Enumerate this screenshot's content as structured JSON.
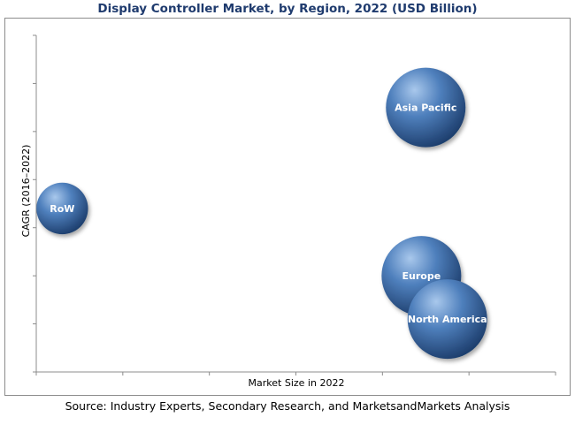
{
  "chart_data": {
    "type": "bubble",
    "title": "Display Controller Market, by Region, 2022 (USD Billion)",
    "xlabel": "Market Size in 2022",
    "ylabel": "CAGR (2016–2022)",
    "xlim": [
      0,
      6
    ],
    "ylim": [
      0,
      7
    ],
    "grid": false,
    "series": [
      {
        "name": "Asia Pacific",
        "x": 4.5,
        "y": 5.5,
        "size": 1.0
      },
      {
        "name": "RoW",
        "x": 0.3,
        "y": 3.4,
        "size": 0.42
      },
      {
        "name": "Europe",
        "x": 4.45,
        "y": 2.0,
        "size": 1.0
      },
      {
        "name": "North America",
        "x": 4.75,
        "y": 1.1,
        "size": 1.0
      }
    ],
    "source": "Source: Industry Experts, Secondary Research, and MarketsandMarkets Analysis"
  },
  "colors": {
    "bubble_light": "#a9c8ec",
    "bubble_mid": "#4f80bd",
    "bubble_dark": "#1e3f6e",
    "title": "#1f3b6e"
  }
}
